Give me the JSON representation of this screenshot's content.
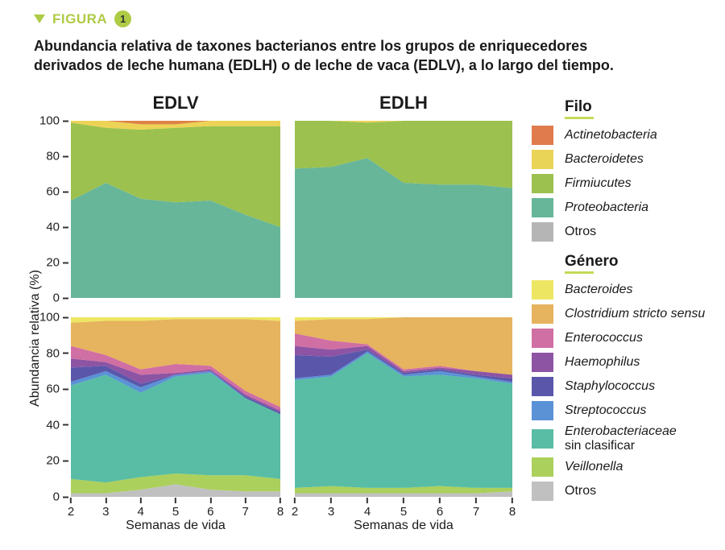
{
  "header": {
    "label": "FIGURA",
    "number": "1"
  },
  "title_lines": [
    "Abundancia relativa de taxones bacterianos entre los grupos de enriquecedores",
    "derivados de leche humana (EDLH) o de leche de vaca (EDLV), a lo largo del tiempo."
  ],
  "columns": [
    "EDLV",
    "EDLH"
  ],
  "axis": {
    "y_label": "Abundancia relativa (%)",
    "x_label": "Semanas de vida",
    "yticks": [
      0,
      20,
      40,
      60,
      80,
      100
    ],
    "xticks": [
      2,
      3,
      4,
      5,
      6,
      7,
      8
    ]
  },
  "colors": {
    "accent_green": "#aecb45",
    "underline_green": "#c6d957"
  },
  "chart_data": [
    {
      "type": "area",
      "group": "EDLV",
      "taxon_level": "Filo",
      "x": [
        2,
        3,
        4,
        5,
        6,
        7,
        8
      ],
      "ylim": [
        0,
        100
      ],
      "series_bottom_to_top": [
        {
          "name": "Otros",
          "color": "#c0c0c0",
          "values": [
            0,
            0,
            0,
            0,
            0,
            0,
            0
          ]
        },
        {
          "name": "Proteobacteria",
          "color": "#67b69a",
          "values": [
            55,
            65,
            56,
            54,
            55,
            47,
            40
          ]
        },
        {
          "name": "Firmiucutes",
          "color": "#9cc14e",
          "values": [
            44,
            31,
            39,
            42,
            42,
            50,
            57
          ]
        },
        {
          "name": "Bacteroidetes",
          "color": "#edd355",
          "values": [
            1,
            4,
            3,
            2,
            3,
            3,
            3
          ]
        },
        {
          "name": "Actinetobacteria",
          "color": "#dd8345",
          "values": [
            0,
            0,
            2,
            2,
            0,
            0,
            0
          ]
        }
      ]
    },
    {
      "type": "area",
      "group": "EDLH",
      "taxon_level": "Filo",
      "x": [
        2,
        3,
        4,
        5,
        6,
        7,
        8
      ],
      "ylim": [
        0,
        100
      ],
      "series_bottom_to_top": [
        {
          "name": "Otros",
          "color": "#c0c0c0",
          "values": [
            0,
            0,
            0,
            0,
            0,
            0,
            0
          ]
        },
        {
          "name": "Proteobacteria",
          "color": "#67b69a",
          "values": [
            73,
            74,
            79,
            65,
            64,
            64,
            62
          ]
        },
        {
          "name": "Firmiucutes",
          "color": "#9cc14e",
          "values": [
            27,
            26,
            20,
            35,
            36,
            36,
            38
          ]
        },
        {
          "name": "Bacteroidetes",
          "color": "#edd355",
          "values": [
            0,
            0,
            1,
            0,
            0,
            0,
            0
          ]
        },
        {
          "name": "Actinetobacteria",
          "color": "#dd8345",
          "values": [
            0,
            0,
            0,
            0,
            0,
            0,
            0
          ]
        }
      ]
    },
    {
      "type": "area",
      "group": "EDLV",
      "taxon_level": "Género",
      "x": [
        2,
        3,
        4,
        5,
        6,
        7,
        8
      ],
      "ylim": [
        0,
        100
      ],
      "series_bottom_to_top": [
        {
          "name": "Otros",
          "color": "#c0c0c0",
          "values": [
            2,
            2,
            4,
            7,
            4,
            3,
            3
          ]
        },
        {
          "name": "Veillonella",
          "color": "#abd05c",
          "values": [
            8,
            6,
            7,
            6,
            8,
            9,
            7
          ]
        },
        {
          "name": "Enterobacteriaceae sin clasificar",
          "color": "#58bda4",
          "values": [
            52,
            60,
            47,
            54,
            57,
            43,
            36
          ]
        },
        {
          "name": "Streptococcus",
          "color": "#5b92d6",
          "values": [
            2,
            2,
            3,
            1,
            1,
            0,
            0
          ]
        },
        {
          "name": "Staphylococcus",
          "color": "#5a57ab",
          "values": [
            8,
            3,
            2,
            0,
            0,
            1,
            1
          ]
        },
        {
          "name": "Haemophilus",
          "color": "#8d54a4",
          "values": [
            5,
            2,
            5,
            1,
            1,
            1,
            1
          ]
        },
        {
          "name": "Enterococcus",
          "color": "#d06fa3",
          "values": [
            7,
            4,
            3,
            5,
            2,
            2,
            2
          ]
        },
        {
          "name": "Clostridium stricto sensu",
          "color": "#e6b35e",
          "values": [
            13,
            19,
            27,
            25,
            26,
            40,
            48
          ]
        },
        {
          "name": "Bacteroides",
          "color": "#ede663",
          "values": [
            3,
            2,
            2,
            1,
            1,
            1,
            2
          ]
        }
      ]
    },
    {
      "type": "area",
      "group": "EDLH",
      "taxon_level": "Género",
      "x": [
        2,
        3,
        4,
        5,
        6,
        7,
        8
      ],
      "ylim": [
        0,
        100
      ],
      "series_bottom_to_top": [
        {
          "name": "Otros",
          "color": "#c0c0c0",
          "values": [
            2,
            2,
            2,
            2,
            2,
            2,
            3
          ]
        },
        {
          "name": "Veillonella",
          "color": "#abd05c",
          "values": [
            3,
            4,
            3,
            3,
            4,
            3,
            2
          ]
        },
        {
          "name": "Enterobacteriaceae sin clasificar",
          "color": "#58bda4",
          "values": [
            60,
            61,
            75,
            62,
            62,
            61,
            58
          ]
        },
        {
          "name": "Streptococcus",
          "color": "#5b92d6",
          "values": [
            1,
            1,
            1,
            1,
            2,
            1,
            1
          ]
        },
        {
          "name": "Staphylococcus",
          "color": "#5a57ab",
          "values": [
            13,
            10,
            1,
            1,
            1,
            1,
            2
          ]
        },
        {
          "name": "Haemophilus",
          "color": "#8d54a4",
          "values": [
            5,
            4,
            2,
            1,
            1,
            2,
            2
          ]
        },
        {
          "name": "Enterococcus",
          "color": "#d06fa3",
          "values": [
            7,
            5,
            1,
            1,
            1,
            0,
            0
          ]
        },
        {
          "name": "Clostridium stricto sensu",
          "color": "#e6b35e",
          "values": [
            7,
            12,
            14,
            29,
            27,
            30,
            32
          ]
        },
        {
          "name": "Bacteroides",
          "color": "#ede663",
          "values": [
            2,
            1,
            1,
            0,
            0,
            0,
            0
          ]
        }
      ]
    }
  ],
  "legend": {
    "filo": {
      "title": "Filo",
      "items": [
        {
          "label": "Actinetobacteria",
          "color": "#df7b4c",
          "italic": true
        },
        {
          "label": "Bacteroidetes",
          "color": "#e9d458",
          "italic": true
        },
        {
          "label": "Firmiucutes",
          "color": "#9cc14e",
          "italic": true
        },
        {
          "label": "Proteobacteria",
          "color": "#67b69a",
          "italic": true
        },
        {
          "label": "Otros",
          "color": "#b5b5b5",
          "italic": false
        }
      ]
    },
    "genero": {
      "title": "Género",
      "items": [
        {
          "label": "Bacteroides",
          "color": "#ede663",
          "italic": true
        },
        {
          "label": "Clostridium stricto sensu",
          "color": "#e6b35e",
          "italic": true
        },
        {
          "label": "Enterococcus",
          "color": "#d06fa3",
          "italic": true
        },
        {
          "label": "Haemophilus",
          "color": "#8d54a4",
          "italic": true
        },
        {
          "label": "Staphylococcus",
          "color": "#5a57ab",
          "italic": true
        },
        {
          "label": "Streptococcus",
          "color": "#5b92d6",
          "italic": true
        },
        {
          "label": "Enterobacteriaceae",
          "label2": "sin clasificar",
          "color": "#58bda4",
          "italic": true
        },
        {
          "label": "Veillonella",
          "color": "#abd05c",
          "italic": true
        },
        {
          "label": "Otros",
          "color": "#c0c0c0",
          "italic": false
        }
      ]
    }
  }
}
